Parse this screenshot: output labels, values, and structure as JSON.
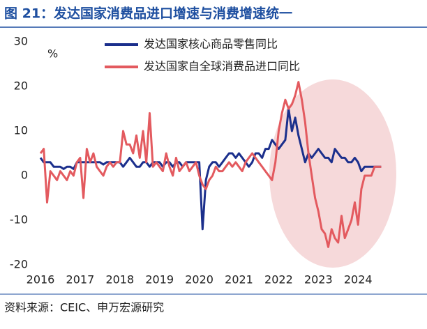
{
  "chart_data": {
    "type": "line",
    "title": "图 21：发达国家消费品进口增速与消费增速统一",
    "y_unit_label": "%",
    "source": "资料来源：CEIC、申万宏源研究",
    "categories": [
      "2016",
      null,
      null,
      null,
      null,
      null,
      null,
      null,
      null,
      null,
      null,
      null,
      "2017",
      null,
      null,
      null,
      null,
      null,
      null,
      null,
      null,
      null,
      null,
      null,
      "2018",
      null,
      null,
      null,
      null,
      null,
      null,
      null,
      null,
      null,
      null,
      null,
      "2019",
      null,
      null,
      null,
      null,
      null,
      null,
      null,
      null,
      null,
      null,
      null,
      "2020",
      null,
      null,
      null,
      null,
      null,
      null,
      null,
      null,
      null,
      null,
      null,
      "2021",
      null,
      null,
      null,
      null,
      null,
      null,
      null,
      null,
      null,
      null,
      null,
      "2022",
      null,
      null,
      null,
      null,
      null,
      null,
      null,
      null,
      null,
      null,
      null,
      "2023",
      null,
      null,
      null,
      null,
      null,
      null,
      null,
      null,
      null,
      null,
      null,
      "2024",
      null,
      null,
      null,
      null,
      null,
      null,
      null
    ],
    "series": [
      {
        "name": "发达国家核心商品零售同比",
        "color": "#1b2f8c",
        "values": [
          4,
          3,
          3,
          3,
          2,
          2,
          2,
          1.5,
          2,
          2,
          1.5,
          3,
          3,
          3,
          3,
          3,
          3,
          3,
          3,
          2.5,
          3,
          3,
          3,
          3,
          3,
          2,
          3,
          4,
          3,
          2,
          2,
          3,
          3,
          2,
          3,
          3,
          3,
          2,
          3,
          3,
          2,
          3,
          3,
          2,
          3,
          3,
          3,
          3,
          3,
          -12,
          -1,
          2,
          3,
          3,
          2,
          3,
          4,
          5,
          5,
          4,
          5,
          4,
          3,
          2,
          3,
          5,
          5,
          4,
          6,
          6,
          8,
          7,
          6,
          7,
          8,
          15,
          10,
          13,
          9,
          6,
          3,
          5,
          4,
          5,
          6,
          5,
          4,
          4,
          3,
          6,
          5,
          4,
          4,
          3,
          3,
          4,
          3,
          1,
          2,
          2,
          2,
          2,
          2,
          2
        ]
      },
      {
        "name": "发达国家自全球消费品进口同比",
        "color": "#e35a5f",
        "values": [
          5,
          6,
          -6,
          1,
          0,
          -1,
          1,
          0,
          -1,
          1,
          0,
          3,
          4,
          -5,
          6,
          3,
          5,
          2,
          1,
          0,
          2,
          3,
          2,
          3,
          3,
          10,
          7,
          7,
          5,
          9,
          4,
          10,
          3,
          14,
          2,
          3,
          2,
          1,
          5,
          2,
          0,
          4,
          1,
          2,
          3,
          1,
          2,
          3,
          0,
          -2,
          -3,
          -1,
          0,
          2,
          1,
          1,
          2,
          3,
          2,
          3,
          2,
          1,
          3,
          4,
          5,
          4,
          3,
          2,
          1,
          0,
          -1,
          3,
          10,
          14,
          17,
          15,
          16,
          18,
          21,
          17,
          12,
          5,
          0,
          -5,
          -8,
          -12,
          -13,
          -16,
          -12,
          -14,
          -15,
          -9,
          -14,
          -12,
          -10,
          -6,
          -11,
          -3,
          0,
          0,
          0,
          2,
          2,
          2
        ]
      }
    ],
    "ylim": [
      -20,
      30
    ],
    "yticks": [
      -20,
      -10,
      0,
      10,
      20,
      30
    ],
    "grid": false
  }
}
